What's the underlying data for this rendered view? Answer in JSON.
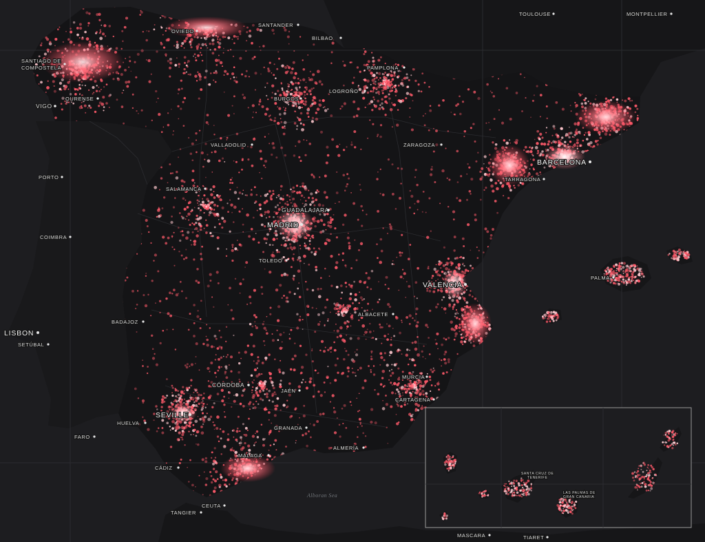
{
  "map": {
    "theme": {
      "background": "#1d1d20",
      "land": "#161618",
      "point_color": "#ff5a6a",
      "point_core": "#ffd9dd",
      "label_color": "#d9d9d9"
    },
    "cities": [
      {
        "id": "montpellier",
        "label": "MONTPELLIER",
        "size": "normal"
      },
      {
        "id": "toulouse",
        "label": "TOULOUSE",
        "size": "normal"
      },
      {
        "id": "oviedo",
        "label": "OVIEDO",
        "size": "normal"
      },
      {
        "id": "santander",
        "label": "SANTANDER",
        "size": "normal"
      },
      {
        "id": "bilbao",
        "label": "BILBAO",
        "size": "normal"
      },
      {
        "id": "santiago1",
        "label": "SANTIAGO DE",
        "size": "normal"
      },
      {
        "id": "santiago2",
        "label": "COMPOSTELA",
        "size": "normal"
      },
      {
        "id": "pamplona",
        "label": "PAMPLONA",
        "size": "normal"
      },
      {
        "id": "ourense",
        "label": "OURENSE",
        "size": "normal"
      },
      {
        "id": "logrono",
        "label": "LOGROÑO",
        "size": "normal"
      },
      {
        "id": "vigo",
        "label": "VIGO",
        "size": "normal"
      },
      {
        "id": "burgos",
        "label": "BURGOS",
        "size": "normal"
      },
      {
        "id": "valladolid",
        "label": "VALLADOLID",
        "size": "normal"
      },
      {
        "id": "zaragoza",
        "label": "ZARAGOZA",
        "size": "normal"
      },
      {
        "id": "barcelona",
        "label": "BARCELONA",
        "size": "big"
      },
      {
        "id": "porto",
        "label": "PORTO",
        "size": "normal"
      },
      {
        "id": "tarragona",
        "label": "TARRAGONA",
        "size": "normal"
      },
      {
        "id": "salamanca",
        "label": "SALAMANCA",
        "size": "normal"
      },
      {
        "id": "guadalajara",
        "label": "GUADALAJARA",
        "size": "normal"
      },
      {
        "id": "madrid",
        "label": "MADRID",
        "size": "big"
      },
      {
        "id": "coimbra",
        "label": "COIMBRA",
        "size": "normal"
      },
      {
        "id": "toledo",
        "label": "TOLEDO",
        "size": "normal"
      },
      {
        "id": "palma",
        "label": "PALMA",
        "size": "normal"
      },
      {
        "id": "valencia",
        "label": "VALENCIA",
        "size": "big"
      },
      {
        "id": "albacete",
        "label": "ALBACETE",
        "size": "normal"
      },
      {
        "id": "badajoz",
        "label": "BADAJOZ",
        "size": "normal"
      },
      {
        "id": "lisbon",
        "label": "LISBON",
        "size": "big"
      },
      {
        "id": "setubal",
        "label": "SETÚBAL",
        "size": "normal"
      },
      {
        "id": "cordoba",
        "label": "CÓRDOBA",
        "size": "normal"
      },
      {
        "id": "murcia",
        "label": "MURCIA",
        "size": "normal"
      },
      {
        "id": "jaen",
        "label": "JAÉN",
        "size": "normal"
      },
      {
        "id": "cartagena",
        "label": "CARTAGENA",
        "size": "normal"
      },
      {
        "id": "seville",
        "label": "SEVILLE",
        "size": "big"
      },
      {
        "id": "huelva",
        "label": "HUELVA",
        "size": "normal"
      },
      {
        "id": "faro",
        "label": "FARO",
        "size": "normal"
      },
      {
        "id": "granada",
        "label": "GRANADA",
        "size": "normal"
      },
      {
        "id": "almeria",
        "label": "ALMERÍA",
        "size": "normal"
      },
      {
        "id": "malaga",
        "label": "MÁLAGA",
        "size": "normal"
      },
      {
        "id": "cadiz",
        "label": "CÁDIZ",
        "size": "normal"
      },
      {
        "id": "tangier",
        "label": "TANGIER",
        "size": "normal"
      },
      {
        "id": "ceuta",
        "label": "CEUTA",
        "size": "normal"
      },
      {
        "id": "mascara",
        "label": "MASCARA",
        "size": "normal"
      },
      {
        "id": "tiaret",
        "label": "TIARET",
        "size": "normal"
      },
      {
        "id": "santacruz1",
        "label": "SANTA CRUZ DE",
        "size": "small"
      },
      {
        "id": "santacruz2",
        "label": "TENERIFE",
        "size": "small"
      },
      {
        "id": "laspalmas1",
        "label": "LAS PALMAS DE",
        "size": "small"
      },
      {
        "id": "laspalmas2",
        "label": "GRAN CANARIA",
        "size": "small"
      }
    ],
    "sea_label": "Alboran Sea",
    "inset": {
      "name": "canary-islands-inset"
    }
  }
}
